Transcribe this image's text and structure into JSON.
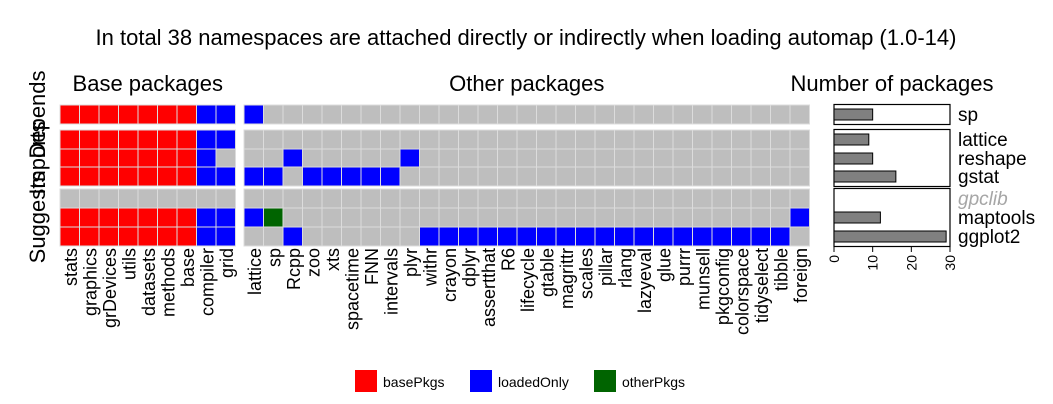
{
  "chart_data": {
    "type": "heatmap",
    "title": "In total 38 namespaces are attached directly or indirectly when loading automap (1.0-14)",
    "panels": [
      "Base packages",
      "Other packages",
      "Number of packages"
    ],
    "groups": [
      "Depends",
      "Imports",
      "Suggests"
    ],
    "rows": [
      "sp",
      "lattice",
      "reshape",
      "gstat",
      "gpclib",
      "maptools",
      "ggplot2"
    ],
    "row_groups": [
      "Depends",
      "Imports",
      "Imports",
      "Imports",
      "Suggests",
      "Suggests",
      "Suggests"
    ],
    "row_missing": [
      false,
      false,
      false,
      false,
      true,
      false,
      false
    ],
    "base_columns": [
      "stats",
      "graphics",
      "grDevices",
      "utils",
      "datasets",
      "methods",
      "base",
      "compiler",
      "grid"
    ],
    "other_columns": [
      "lattice",
      "sp",
      "Rcpp",
      "zoo",
      "xts",
      "spacetime",
      "FNN",
      "intervals",
      "plyr",
      "withr",
      "crayon",
      "dplyr",
      "assertthat",
      "R6",
      "lifecycle",
      "gtable",
      "magrittr",
      "scales",
      "pillar",
      "rlang",
      "lazyeval",
      "glue",
      "purrr",
      "munsell",
      "pkgconfig",
      "colorspace",
      "tidyselect",
      "tibble",
      "foreign"
    ],
    "legend": [
      {
        "key": "basePkgs",
        "label": "basePkgs",
        "color": "#ff0000"
      },
      {
        "key": "loadedOnly",
        "label": "loadedOnly",
        "color": "#0000ff"
      },
      {
        "key": "otherPkgs",
        "label": "otherPkgs",
        "color": "#006400"
      }
    ],
    "empty_color": "#bebebe",
    "cells": {
      "sp": {
        "base": "BBBBBBBLL",
        "other": "L............................"
      },
      "lattice": {
        "base": "BBBBBBBLL",
        "other": "............................."
      },
      "reshape": {
        "base": "BBBBBBBL.",
        "other": "..L.....L...................."
      },
      "gstat": {
        "base": "BBBBBBBLL",
        "other": "LL.LLLLL....................."
      },
      "gpclib": {
        "base": ".........",
        "other": "............................."
      },
      "maptools": {
        "base": "BBBBBBBLL",
        "other": "LO..........................L"
      },
      "ggplot2": {
        "base": "BBBBBBBLL",
        "other": "..L......LLLLLLLLLLLLLLLLLLL."
      }
    },
    "counts": {
      "sp": 10,
      "lattice": 9,
      "reshape": 10,
      "gstat": 16,
      "gpclib": null,
      "maptools": 12,
      "ggplot2": 29
    },
    "count_axis": {
      "ticks": [
        0,
        10,
        20,
        30
      ],
      "xlim": [
        0,
        30
      ]
    }
  }
}
